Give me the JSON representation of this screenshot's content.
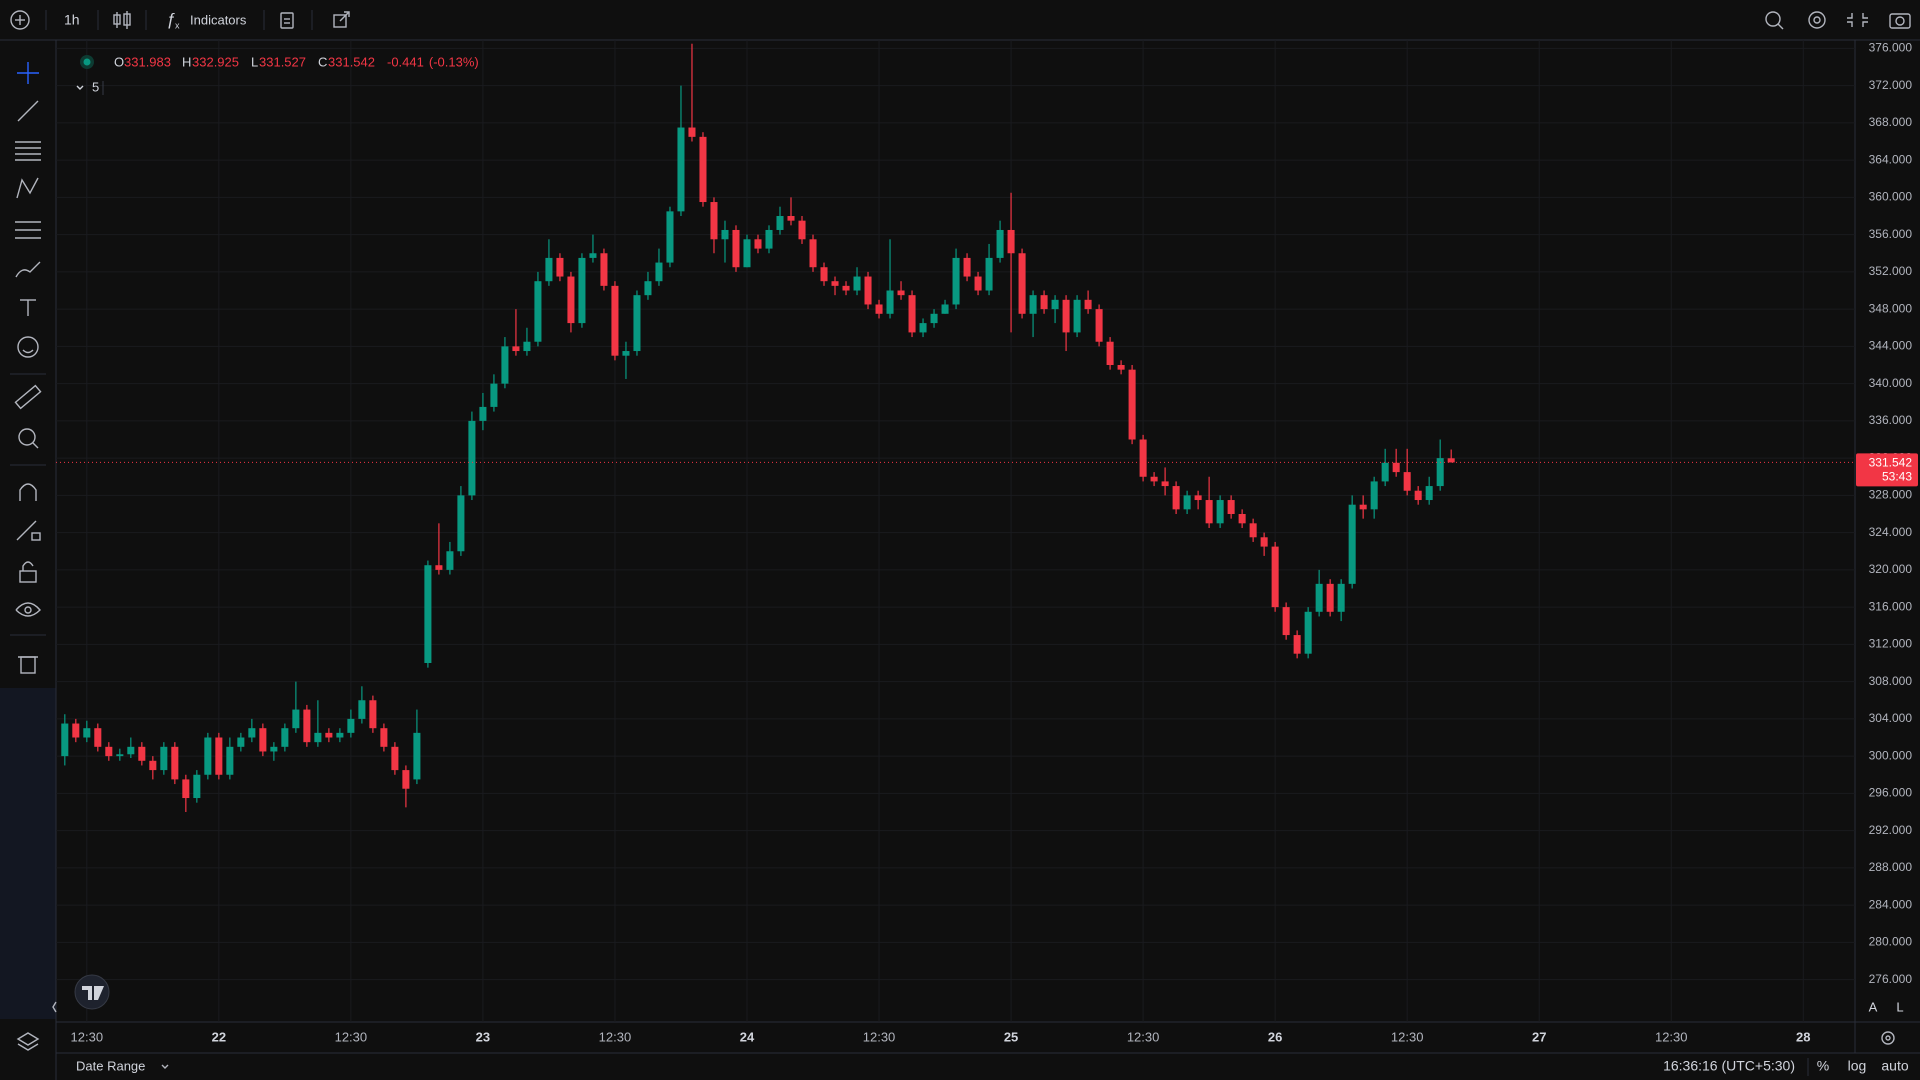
{
  "chart_data": {
    "type": "candlestick",
    "x": [
      0,
      1,
      2,
      3,
      4,
      5,
      6,
      7,
      8,
      9,
      10,
      11,
      12,
      13,
      14,
      15,
      16,
      17,
      18,
      19,
      20,
      21,
      22,
      23,
      24,
      25,
      26,
      27,
      28,
      29,
      30,
      31,
      32,
      33,
      34,
      35,
      36,
      37,
      38,
      39,
      40,
      41,
      42,
      43,
      44,
      45,
      46,
      47,
      48,
      49,
      50,
      51,
      52,
      53,
      54,
      55,
      56,
      57,
      58,
      59,
      60,
      61,
      62,
      63,
      64,
      65,
      66,
      67,
      68,
      69,
      70,
      71,
      72,
      73,
      74,
      75,
      76,
      77,
      78,
      79,
      80,
      81,
      82,
      83,
      84,
      85,
      86,
      87,
      88,
      89,
      90,
      91,
      92,
      93,
      94,
      95,
      96,
      97,
      98,
      99,
      100,
      101,
      102,
      103,
      104,
      105,
      106,
      107,
      108,
      109,
      110,
      111,
      112,
      113,
      114,
      115,
      116,
      117,
      118,
      119,
      120,
      121,
      122,
      123,
      124,
      125,
      126
    ],
    "open": [
      300,
      303.5,
      302,
      303,
      301,
      300,
      300.2,
      301,
      299.5,
      298.5,
      301,
      297.5,
      295.5,
      298,
      302,
      298,
      301,
      302,
      303,
      300.5,
      301,
      303,
      305,
      301.5,
      302.5,
      302,
      302.5,
      304,
      306,
      303,
      301,
      298.5,
      297.5,
      310,
      320.5,
      320,
      322,
      328,
      336,
      337.5,
      340,
      344,
      343.5,
      344.5,
      351,
      353.5,
      351.5,
      346.5,
      353.5,
      354,
      350.5,
      343,
      343.5,
      349.5,
      351,
      353,
      358.5,
      367.5,
      366.5,
      359.5,
      355.5,
      356.5,
      352.5,
      355.5,
      354.5,
      356.5,
      358,
      357.5,
      355.5,
      352.5,
      351,
      350.5,
      350,
      351.5,
      348.5,
      347.5,
      350,
      349.5,
      345.5,
      346.5,
      347.5,
      348.5,
      353.5,
      351.5,
      350,
      353.5,
      356.5,
      354,
      347.5,
      349.5,
      348,
      349,
      345.5,
      349,
      348,
      344.5,
      342,
      341.5,
      334,
      330,
      329.5,
      329,
      326.5,
      328,
      327.5,
      325,
      327.5,
      326,
      325,
      323.5,
      322.5,
      316,
      313,
      311,
      315.5,
      318.5,
      315.5,
      318.5,
      327,
      326.5,
      329.5,
      331.5,
      330.5,
      328.5,
      327.5,
      329,
      331.983
    ],
    "high": [
      304.5,
      304,
      303.8,
      303.5,
      301.5,
      300.8,
      302,
      301.5,
      300,
      301.5,
      301.5,
      298,
      298.5,
      302.5,
      302.5,
      302,
      302.5,
      304,
      303.5,
      301.5,
      303.5,
      308,
      305.5,
      306,
      303,
      303,
      305,
      307.5,
      306.5,
      303.5,
      301.5,
      299,
      305,
      321,
      325,
      323,
      329,
      337,
      339,
      341,
      345,
      348,
      346,
      352,
      355.5,
      354,
      352,
      354,
      356,
      354.5,
      351,
      344.5,
      350,
      352,
      354.5,
      359,
      372,
      376.5,
      367,
      360,
      357.5,
      357,
      356,
      356,
      357,
      359,
      360,
      358,
      356,
      353,
      351.5,
      351,
      352.5,
      352,
      349,
      355.5,
      351,
      350,
      347,
      348,
      349,
      354.5,
      354,
      352,
      355,
      357.5,
      360.5,
      354.5,
      350,
      350,
      349.5,
      349.5,
      349.5,
      350,
      348.5,
      345,
      342.5,
      342,
      334.5,
      330.5,
      331,
      329.5,
      328.5,
      328.5,
      330,
      328,
      328,
      326.5,
      325.5,
      324,
      323,
      316.5,
      313.5,
      316,
      320,
      319,
      319,
      328,
      328,
      330,
      333,
      333,
      333,
      329,
      330,
      334,
      332.925
    ],
    "low": [
      299,
      301.5,
      301.5,
      300.5,
      299.5,
      299.5,
      299.8,
      299,
      297.5,
      298,
      297,
      294,
      295,
      297.5,
      297.5,
      297.5,
      300.5,
      301.5,
      300,
      299.5,
      300.5,
      302.5,
      301,
      301,
      301.5,
      301.5,
      302,
      303.5,
      302.5,
      300.5,
      298,
      294.5,
      297,
      309.5,
      319.5,
      319.5,
      321.5,
      327.5,
      335,
      337,
      339.5,
      343,
      343,
      344,
      350.5,
      351,
      345.5,
      346,
      353,
      350,
      342.5,
      340.5,
      343,
      349,
      350.5,
      352.5,
      358,
      366,
      359,
      354,
      353,
      352,
      352.5,
      354,
      354,
      356,
      357,
      355,
      352,
      350.5,
      349.5,
      349.5,
      349.5,
      348,
      347,
      347,
      349,
      345,
      345,
      346,
      347.5,
      348,
      351,
      349.5,
      349.5,
      353,
      345.5,
      347,
      345,
      347.5,
      346.5,
      343.5,
      345,
      347.5,
      344,
      341.5,
      341,
      333.5,
      329.5,
      329,
      328,
      326,
      326,
      326.5,
      324.5,
      324.5,
      325.5,
      324.5,
      323,
      321.5,
      315.5,
      312.5,
      310.5,
      310.5,
      315,
      315,
      314.5,
      318,
      325.5,
      325.5,
      329,
      330,
      328,
      327,
      327,
      328.5,
      331.527
    ],
    "close": [
      303.5,
      302,
      303,
      301,
      300,
      300.2,
      301,
      299.5,
      298.5,
      301,
      297.5,
      295.5,
      298,
      302,
      298,
      301,
      302,
      303,
      300.5,
      301,
      303,
      305,
      301.5,
      302.5,
      302,
      302.5,
      304,
      306,
      303,
      301,
      298.5,
      296.5,
      302.5,
      320.5,
      320,
      322,
      328,
      336,
      337.5,
      340,
      344,
      343.5,
      344.5,
      351,
      353.5,
      351.5,
      346.5,
      353.5,
      354,
      350.5,
      343,
      343.5,
      349.5,
      351,
      353,
      358.5,
      367.5,
      366.5,
      359.5,
      355.5,
      356.5,
      352.5,
      355.5,
      354.5,
      356.5,
      358,
      357.5,
      355.5,
      352.5,
      351,
      350.5,
      350,
      351.5,
      348.5,
      347.5,
      350,
      349.5,
      345.5,
      346.5,
      347.5,
      348.5,
      353.5,
      351.5,
      350,
      353.5,
      356.5,
      354,
      347.5,
      349.5,
      348,
      349,
      345.5,
      349,
      348,
      344.5,
      342,
      341.5,
      334,
      330,
      329.5,
      329,
      326.5,
      328,
      327.5,
      325,
      327.5,
      326,
      325,
      323.5,
      322.5,
      316,
      313,
      311,
      315.5,
      318.5,
      315.5,
      318.5,
      327,
      326.5,
      329.5,
      331.5,
      330.5,
      328.5,
      327.5,
      329,
      332,
      331.542
    ],
    "up_color": "#089981",
    "down_color": "#f23645",
    "xlim": [
      -0.8,
      162.7
    ],
    "xticks": [
      {
        "value": 2,
        "label": "12:30"
      },
      {
        "value": 14,
        "label": "22"
      },
      {
        "value": 26,
        "label": "12:30"
      },
      {
        "value": 38,
        "label": "23"
      },
      {
        "value": 50,
        "label": "12:30"
      },
      {
        "value": 62,
        "label": "24"
      },
      {
        "value": 74,
        "label": "12:30"
      },
      {
        "value": 86,
        "label": "25"
      },
      {
        "value": 98,
        "label": "12:30"
      },
      {
        "value": 110,
        "label": "26"
      },
      {
        "value": 122,
        "label": "12:30"
      },
      {
        "value": 134,
        "label": "27"
      },
      {
        "value": 146,
        "label": "12:30"
      },
      {
        "value": 158,
        "label": "28"
      }
    ],
    "ylim": [
      271.45,
      376.9
    ],
    "yticks": [
      {
        "value": 276,
        "label": "276.000"
      },
      {
        "value": 280,
        "label": "280.000"
      },
      {
        "value": 284,
        "label": "284.000"
      },
      {
        "value": 288,
        "label": "288.000"
      },
      {
        "value": 292,
        "label": "292.000"
      },
      {
        "value": 296,
        "label": "296.000"
      },
      {
        "value": 300,
        "label": "300.000"
      },
      {
        "value": 304,
        "label": "304.000"
      },
      {
        "value": 308,
        "label": "308.000"
      },
      {
        "value": 312,
        "label": "312.000"
      },
      {
        "value": 316,
        "label": "316.000"
      },
      {
        "value": 320,
        "label": "320.000"
      },
      {
        "value": 324,
        "label": "324.000"
      },
      {
        "value": 328,
        "label": "328.000"
      },
      {
        "value": 332,
        "label": "332.000"
      },
      {
        "value": 336,
        "label": "336.000"
      },
      {
        "value": 340,
        "label": "340.000"
      },
      {
        "value": 344,
        "label": "344.000"
      },
      {
        "value": 348,
        "label": "348.000"
      },
      {
        "value": 352,
        "label": "352.000"
      },
      {
        "value": 356,
        "label": "356.000"
      },
      {
        "value": 360,
        "label": "360.000"
      },
      {
        "value": 364,
        "label": "364.000"
      },
      {
        "value": 368,
        "label": "368.000"
      },
      {
        "value": 372,
        "label": "372.000"
      },
      {
        "value": 376,
        "label": "376.000"
      }
    ],
    "grid": true
  },
  "header": {
    "interval": "1h",
    "indicators": "Indicators",
    "ohlc_letters": [
      "O",
      "H",
      "L",
      "C"
    ],
    "change": -0.441,
    "change_pct": "(-0.13%)",
    "indicator_count": 5,
    "countdown": "53:43"
  },
  "footer": {
    "date_range": "Date Range",
    "clock": "16:36:16 (UTC+5:30)",
    "percent": "%",
    "log": "log",
    "auto": "auto",
    "scale_a": "A",
    "scale_l": "L"
  }
}
